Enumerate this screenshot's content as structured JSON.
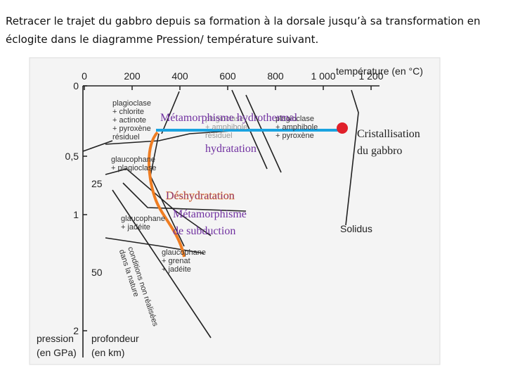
{
  "instruction": [
    "Retracer le trajet du gabbro depuis sa formation à la dorsale jusqu’à sa transformation en",
    "éclogite dans le diagramme Pression/ température suivant."
  ],
  "diagram": {
    "temperature_axis": {
      "title": "température (en °C)",
      "ticks": [
        "0",
        "200",
        "400",
        "600",
        "800",
        "1 000",
        "1 200"
      ]
    },
    "pressure_axis": {
      "title": [
        "pression",
        "(en GPa)"
      ],
      "ticks": [
        "0",
        "0,5",
        "1",
        "2"
      ]
    },
    "depth_axis": {
      "title": [
        "profondeur",
        "(en km)"
      ],
      "ticks": [
        "25",
        "50"
      ]
    },
    "fields": [
      [
        "plagioclase",
        "+ chlorite",
        "+ actinote",
        "+ pyroxène",
        "résiduel"
      ],
      [
        "plagioclase",
        "+ amphibole",
        "résiduel"
      ],
      [
        "plagioclase",
        "+ amphibole",
        "+ pyroxène"
      ],
      [
        "glaucophane",
        "+ plagioclase"
      ],
      [
        "glaucophane",
        "+ jadéite"
      ],
      [
        "glaucophane",
        "+ grenat",
        "+ jadéite"
      ]
    ],
    "excluded_region": [
      "conditions non réalisées",
      "dans la nature"
    ],
    "solidus": "Solidus",
    "annotations": {
      "hydrothermal": "Métamorphisme hydrothermal",
      "hydration": "hydratation",
      "crystallization": [
        "Cristallisation",
        "du gabbro"
      ],
      "dehydration": "Déshydratation",
      "subduction": [
        "Métamorphisme",
        "de subduction"
      ]
    }
  }
}
